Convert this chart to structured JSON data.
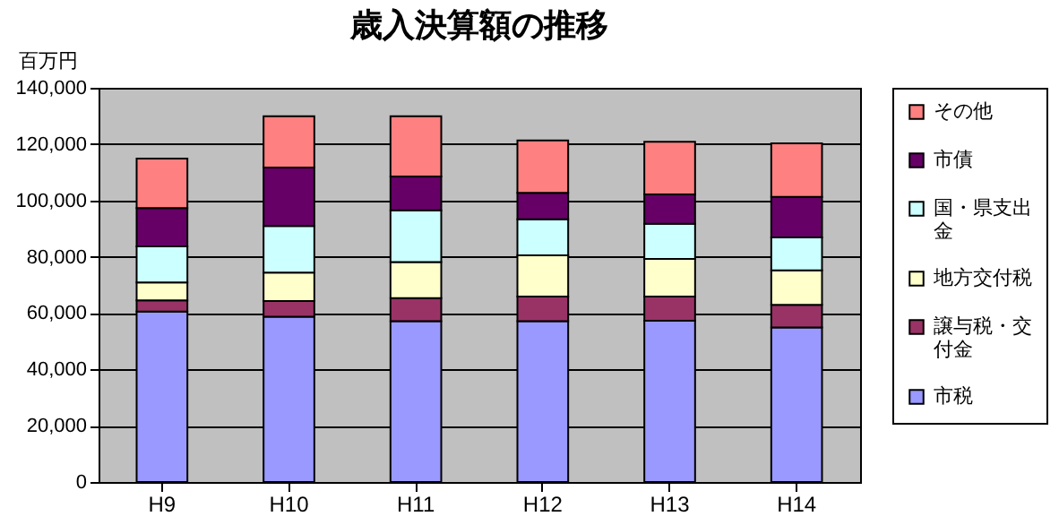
{
  "chart_data": {
    "type": "bar",
    "title": "歳入決算額の推移",
    "ylabel": "百万円",
    "categories": [
      "H9",
      "H10",
      "H11",
      "H12",
      "H13",
      "H14"
    ],
    "stacked": true,
    "ylim": [
      0,
      140000
    ],
    "yticks": [
      0,
      {
        "value": 20000,
        "label": "20,000"
      },
      {
        "value": 40000,
        "label": "40,000"
      },
      {
        "value": 60000,
        "label": "60,000"
      },
      {
        "value": 80000,
        "label": "80,000"
      },
      {
        "value": 100000,
        "label": "100,000"
      },
      {
        "value": 120000,
        "label": "120,000"
      },
      {
        "value": 140000,
        "label": "140,000"
      }
    ],
    "grid": "y",
    "legend": "right",
    "series": [
      {
        "name": "市税",
        "color": "#9999ff",
        "values": [
          60500,
          58700,
          57100,
          57100,
          57300,
          54900
        ]
      },
      {
        "name": "譲与税・交付金",
        "color": "#993366",
        "values": [
          4000,
          5600,
          8200,
          8800,
          8600,
          8000
        ]
      },
      {
        "name": "地方交付税",
        "color": "#ffffcc",
        "values": [
          6400,
          10100,
          12800,
          14600,
          13300,
          12300
        ]
      },
      {
        "name": "国・県支出金",
        "color": "#ccffff",
        "values": [
          12800,
          16500,
          18400,
          12800,
          12500,
          11700
        ]
      },
      {
        "name": "市債",
        "color": "#660066",
        "values": [
          13600,
          20800,
          12000,
          9400,
          10400,
          14400
        ]
      },
      {
        "name": "その他",
        "color": "#ff8080",
        "values": [
          17600,
          18200,
          21400,
          18600,
          18700,
          19000
        ]
      }
    ]
  }
}
